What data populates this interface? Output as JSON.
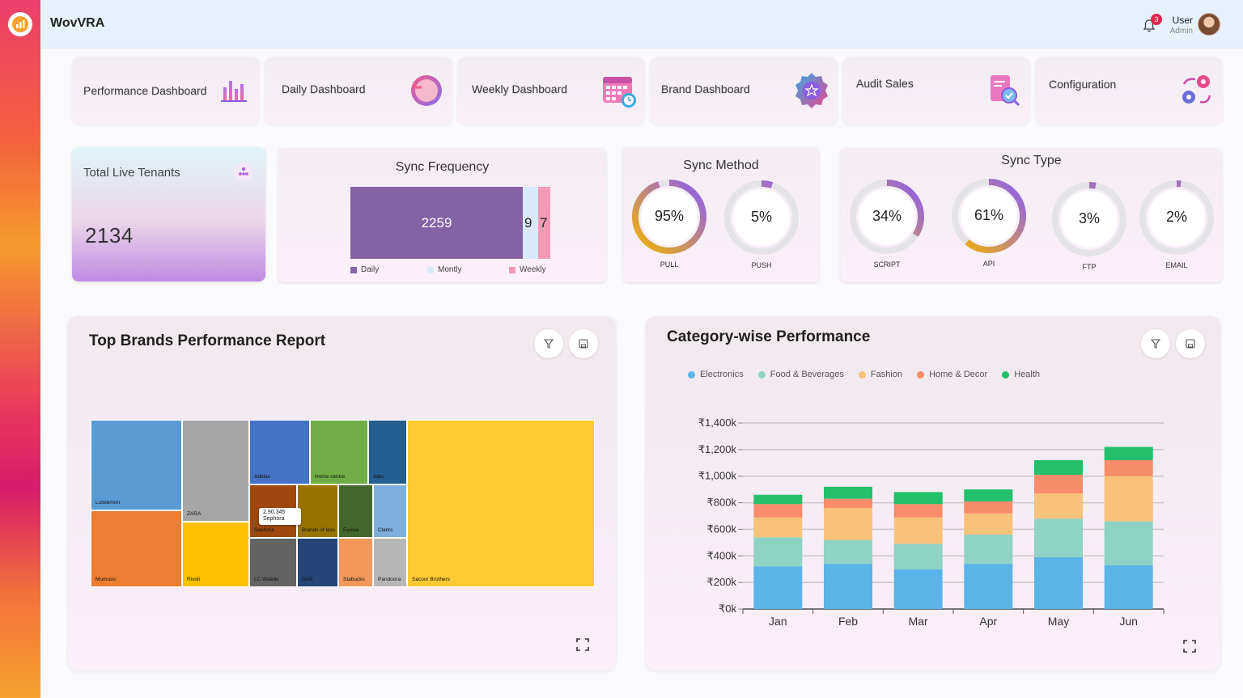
{
  "app": {
    "title": "WovVRA"
  },
  "header": {
    "notification_count": "3",
    "user_name": "User",
    "user_role": "Admin"
  },
  "nav_cards": [
    {
      "label": "Performance Dashboard",
      "icon": "bar-chart-icon"
    },
    {
      "label": "Daily Dashboard",
      "icon": "refresh-icon"
    },
    {
      "label": "Weekly Dashboard",
      "icon": "calendar-icon"
    },
    {
      "label": "Brand Dashboard",
      "icon": "star-badge-icon"
    },
    {
      "label": "Audit Sales",
      "icon": "audit-search-icon"
    },
    {
      "label": "Configuration",
      "icon": "gears-icon"
    }
  ],
  "tenants": {
    "title": "Total Live Tenants",
    "value": "2134"
  },
  "sync_frequency": {
    "title": "Sync Frequency",
    "segments": [
      {
        "label": "Daily",
        "value": 2259,
        "display": "2259",
        "color": "#8561a6"
      },
      {
        "label": "Montly",
        "value": 9,
        "display": "9",
        "color": "#d9e9fa"
      },
      {
        "label": "Weekly",
        "value": 7,
        "display": "7",
        "color": "#f29ab6"
      }
    ]
  },
  "sync_method": {
    "title": "Sync Method",
    "items": [
      {
        "value": "95%",
        "percent": 95,
        "label": "PULL"
      },
      {
        "value": "5%",
        "percent": 5,
        "label": "PUSH"
      }
    ]
  },
  "sync_type": {
    "title": "Sync Type",
    "items": [
      {
        "value": "34%",
        "percent": 34,
        "label": "SCRIPT"
      },
      {
        "value": "61%",
        "percent": 61,
        "label": "API"
      },
      {
        "value": "3%",
        "percent": 3,
        "label": "FTP"
      },
      {
        "value": "2%",
        "percent": 2,
        "label": "EMAIL"
      }
    ]
  },
  "top_brands": {
    "title": "Top Brands Performance Report",
    "tooltip": {
      "value": "2,90,345",
      "label": "Sephora"
    },
    "brands": [
      {
        "name": "Lululemon",
        "color": "#5b9bd5"
      },
      {
        "name": "Mumuso",
        "color": "#ed7d31"
      },
      {
        "name": "ZARA",
        "color": "#a5a5a5"
      },
      {
        "name": "Rivoli",
        "color": "#ffc000"
      },
      {
        "name": "Adidas",
        "color": "#4472c4"
      },
      {
        "name": "Home centre",
        "color": "#70ad47"
      },
      {
        "name": "Aldo",
        "color": "#255e91"
      },
      {
        "name": "Sephora",
        "color": "#9e480e"
      },
      {
        "name": "Brands of less",
        "color": "#997300"
      },
      {
        "name": "Eyewa",
        "color": "#43682b"
      },
      {
        "name": "Clarks",
        "color": "#7cafdd"
      },
      {
        "name": "LC Waikiki",
        "color": "#636363"
      },
      {
        "name": "GAP",
        "color": "#264478"
      },
      {
        "name": "Stabucks",
        "color": "#f1975a"
      },
      {
        "name": "Pandoora",
        "color": "#b7b7b7"
      },
      {
        "name": "Sacoor Brothers",
        "color": "#ffca33"
      }
    ]
  },
  "category_performance": {
    "title": "Category-wise Performance",
    "legend": [
      {
        "name": "Electronics",
        "color": "#5ab4e8"
      },
      {
        "name": "Food & Beverages",
        "color": "#8fd3c4"
      },
      {
        "name": "Fashion",
        "color": "#f9c27a"
      },
      {
        "name": "Home & Decor",
        "color": "#f98c6a"
      },
      {
        "name": "Health",
        "color": "#22c06a"
      }
    ]
  },
  "chart_data": {
    "type": "bar",
    "stacked": true,
    "title": "Category-wise Performance",
    "xlabel": "",
    "ylabel": "",
    "categories": [
      "Jan",
      "Feb",
      "Mar",
      "Apr",
      "May",
      "Jun"
    ],
    "series": [
      {
        "name": "Electronics",
        "color": "#5ab4e8",
        "values": [
          320,
          340,
          300,
          340,
          390,
          330
        ]
      },
      {
        "name": "Food & Beverages",
        "color": "#8fd3c4",
        "values": [
          220,
          180,
          190,
          220,
          290,
          330
        ]
      },
      {
        "name": "Fashion",
        "color": "#f9c27a",
        "values": [
          150,
          240,
          200,
          160,
          190,
          340
        ]
      },
      {
        "name": "Home & Decor",
        "color": "#f98c6a",
        "values": [
          100,
          70,
          100,
          90,
          140,
          120
        ]
      },
      {
        "name": "Health",
        "color": "#22c06a",
        "values": [
          70,
          90,
          90,
          90,
          110,
          100
        ]
      }
    ],
    "ylim": [
      0,
      1400
    ],
    "yticks": [
      0,
      200,
      400,
      600,
      800,
      1000,
      1200,
      1400
    ],
    "ytick_labels": [
      "₹0k",
      "₹200k",
      "₹400k",
      "₹600k",
      "₹800k",
      "₹1,000k",
      "₹1,200k",
      "₹1,400k"
    ],
    "legend_position": "top-left"
  }
}
